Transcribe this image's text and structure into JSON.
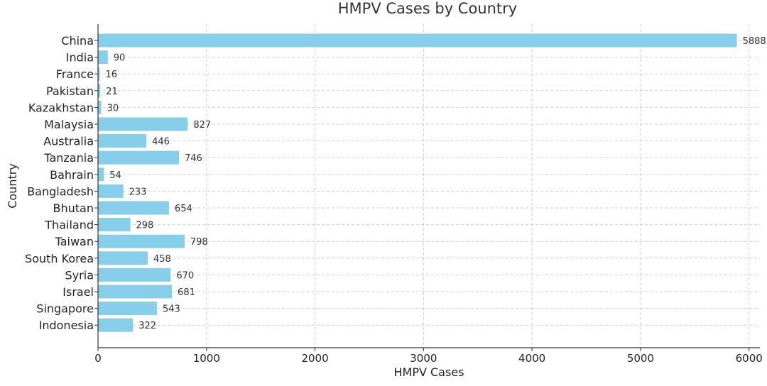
{
  "chart_data": {
    "type": "bar",
    "orientation": "horizontal",
    "title": "HMPV Cases by Country",
    "xlabel": "HMPV Cases",
    "ylabel": "Country",
    "categories": [
      "China",
      "India",
      "France",
      "Pakistan",
      "Kazakhstan",
      "Malaysia",
      "Australia",
      "Tanzania",
      "Bahrain",
      "Bangladesh",
      "Bhutan",
      "Thailand",
      "Taiwan",
      "South Korea",
      "Syria",
      "Israel",
      "Singapore",
      "Indonesia"
    ],
    "values": [
      5888,
      90,
      16,
      21,
      30,
      827,
      446,
      746,
      54,
      233,
      654,
      298,
      798,
      458,
      670,
      681,
      543,
      322
    ],
    "xlim": [
      0,
      6100
    ],
    "xticks": [
      0,
      1000,
      2000,
      3000,
      4000,
      5000,
      6000
    ],
    "bar_color": "#87CEEB",
    "grid": true,
    "data_labels": true
  }
}
